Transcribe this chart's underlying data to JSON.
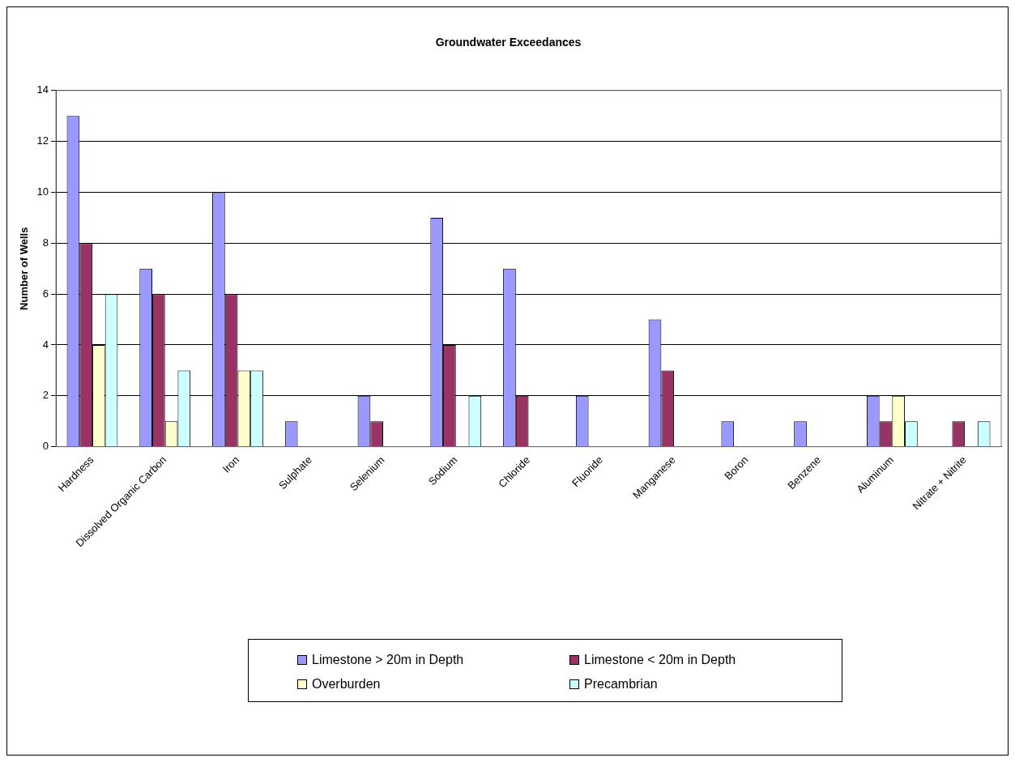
{
  "chart_data": {
    "type": "bar",
    "title": "Groundwater Exceedances",
    "ylabel": "Number of Wells",
    "categories": [
      "Hardness",
      "Dissolved Organic Carbon",
      "Iron",
      "Sulphate",
      "Selenium",
      "Sodium",
      "Chloride",
      "Fluoride",
      "Manganese",
      "Boron",
      "Benzene",
      "Aluminum",
      "Nitrate + Nitrite"
    ],
    "series": [
      {
        "name": "Limestone > 20m in Depth",
        "color": "#9999ff",
        "values": [
          13,
          7,
          10,
          1,
          2,
          9,
          7,
          2,
          5,
          1,
          1,
          2,
          0
        ]
      },
      {
        "name": "Limestone < 20m in Depth",
        "color": "#993366",
        "values": [
          8,
          6,
          6,
          0,
          1,
          4,
          2,
          0,
          3,
          0,
          0,
          1,
          1
        ]
      },
      {
        "name": "Overburden",
        "color": "#ffffcc",
        "values": [
          4,
          1,
          3,
          0,
          0,
          0,
          0,
          0,
          0,
          0,
          0,
          2,
          0
        ]
      },
      {
        "name": "Precambrian",
        "color": "#ccffff",
        "values": [
          6,
          3,
          3,
          0,
          0,
          2,
          0,
          0,
          0,
          0,
          0,
          1,
          1
        ]
      }
    ],
    "ylim": [
      0,
      14
    ],
    "yticks": [
      0,
      2,
      4,
      6,
      8,
      10,
      12,
      14
    ],
    "grid": "y",
    "legend": "bottom"
  }
}
